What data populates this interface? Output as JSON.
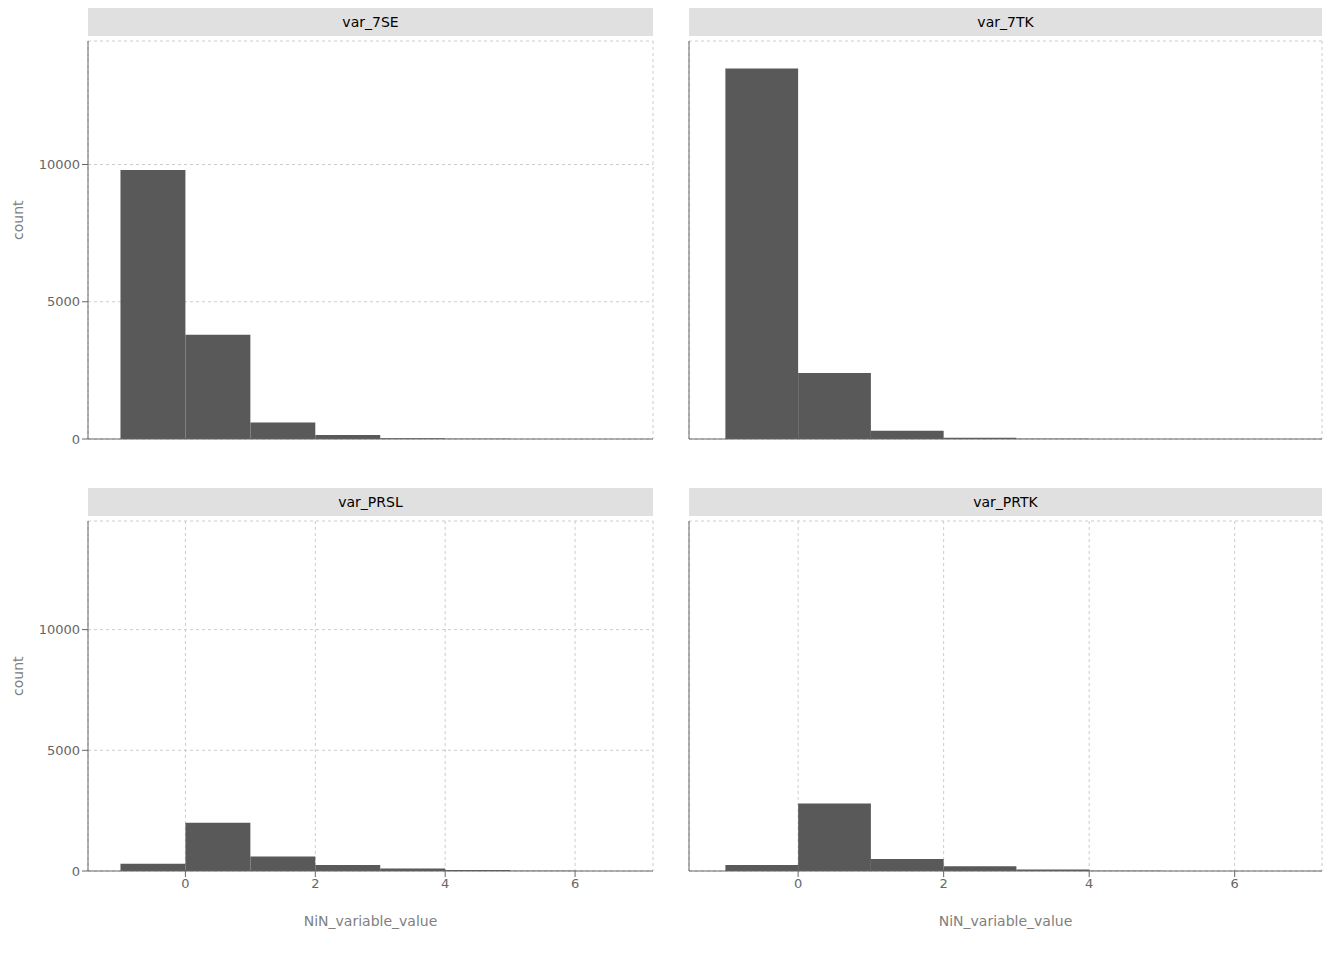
{
  "chart_data": [
    {
      "type": "histogram",
      "title": "var_7SE",
      "bins": [
        -1.0,
        0.0,
        1.0,
        2.0,
        3.0,
        4.0,
        5.0,
        6.0,
        7.0
      ],
      "values": [
        9800,
        3800,
        600,
        150,
        30,
        5,
        2,
        0
      ],
      "color": "#595959",
      "xlim": [
        -1.5,
        7.2
      ],
      "ylim": [
        0,
        14500
      ],
      "xticks": [
        0,
        2,
        4,
        6
      ],
      "yticks": [
        0,
        5000,
        10000
      ],
      "grid": true,
      "ylabel": "count",
      "tick_labels": "y"
    },
    {
      "type": "histogram",
      "title": "var_7TK",
      "bins": [
        -1.0,
        0.0,
        1.0,
        2.0,
        3.0,
        4.0,
        5.0,
        6.0,
        7.0
      ],
      "values": [
        13500,
        2400,
        300,
        50,
        10,
        3,
        1,
        0
      ],
      "color": "#595959",
      "xlim": [
        -1.5,
        7.2
      ],
      "ylim": [
        0,
        14500
      ],
      "xticks": [
        0,
        2,
        4,
        6
      ],
      "yticks": [
        0,
        5000,
        10000
      ],
      "grid": true,
      "tick_labels": false
    },
    {
      "type": "histogram",
      "title": "var_PRSL",
      "bins": [
        -1.0,
        0.0,
        1.0,
        2.0,
        3.0,
        4.0,
        5.0,
        6.0,
        7.0
      ],
      "values": [
        300,
        2000,
        600,
        250,
        100,
        40,
        10,
        2
      ],
      "color": "#595959",
      "xlim": [
        -1.5,
        7.2
      ],
      "ylim": [
        0,
        14500
      ],
      "xticks": [
        0,
        2,
        4,
        6
      ],
      "yticks": [
        0,
        5000,
        10000
      ],
      "grid": true,
      "xlabel": "NiN_variable_value",
      "ylabel": "count",
      "tick_labels": true
    },
    {
      "type": "histogram",
      "title": "var_PRTK",
      "bins": [
        -1.0,
        0.0,
        1.0,
        2.0,
        3.0,
        4.0,
        5.0,
        6.0,
        7.0
      ],
      "values": [
        250,
        2800,
        500,
        200,
        60,
        15,
        5,
        1
      ],
      "color": "#595959",
      "xlim": [
        -1.5,
        7.2
      ],
      "ylim": [
        0,
        14500
      ],
      "xticks": [
        0,
        2,
        4,
        6
      ],
      "yticks": [
        0,
        5000,
        10000
      ],
      "grid": true,
      "xlabel": "NiN_variable_value",
      "tick_labels": "x"
    }
  ]
}
